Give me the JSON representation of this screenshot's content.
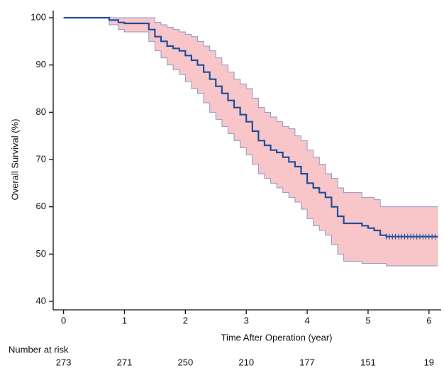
{
  "chart_data": {
    "type": "step",
    "y_label": "Overall Survival (%)",
    "x_label": "Time After Operation (year)",
    "xlim": [
      -0.17,
      6.2
    ],
    "ylim": [
      38.2,
      101.5
    ],
    "xticks": [
      0,
      1,
      2,
      3,
      4,
      5,
      6
    ],
    "yticks": [
      40,
      50,
      60,
      70,
      80,
      90,
      100
    ],
    "x": [
      0,
      0.75,
      0.9,
      1.0,
      1.4,
      1.5,
      1.6,
      1.7,
      1.8,
      1.9,
      2.0,
      2.1,
      2.2,
      2.3,
      2.4,
      2.5,
      2.6,
      2.7,
      2.8,
      2.9,
      3.0,
      3.1,
      3.2,
      3.3,
      3.4,
      3.5,
      3.6,
      3.7,
      3.8,
      3.9,
      4.0,
      4.1,
      4.2,
      4.3,
      4.4,
      4.5,
      4.6,
      4.9,
      5.0,
      5.1,
      5.2,
      5.3,
      6.15
    ],
    "values": [
      100,
      99.5,
      99,
      98.8,
      97.5,
      96,
      95,
      94,
      93.5,
      93,
      92,
      91,
      90,
      88.5,
      87,
      85.5,
      84,
      82.5,
      81,
      79.5,
      78,
      76,
      74,
      73,
      72,
      71.5,
      70.5,
      69.5,
      68.5,
      67,
      65,
      64,
      63,
      62,
      60,
      58,
      56.5,
      56,
      55.5,
      55,
      54,
      53.7,
      53.7
    ],
    "lower": [
      100,
      98.5,
      97.5,
      97,
      95,
      93,
      91.5,
      90,
      89,
      88,
      86.5,
      85,
      84,
      82,
      80,
      78.5,
      77,
      75.5,
      74,
      72.5,
      71,
      69,
      67,
      66,
      65,
      64,
      63,
      62,
      61,
      59.5,
      57.5,
      56,
      55,
      54,
      52,
      50,
      48.5,
      48,
      48,
      48,
      48,
      47.5,
      47.5
    ],
    "upper": [
      100,
      100,
      100,
      100,
      100,
      99,
      98.5,
      98,
      97.5,
      97,
      96.5,
      96,
      95,
      94,
      93,
      91.5,
      90,
      88.5,
      87,
      86,
      85,
      83,
      81,
      80,
      79,
      78,
      77,
      76.5,
      75,
      74,
      72,
      70.5,
      69,
      67,
      66,
      64,
      63,
      62,
      62,
      61.5,
      60,
      60,
      60
    ],
    "censored_x": [
      5.3,
      5.35,
      5.4,
      5.45,
      5.5,
      5.55,
      5.6,
      5.65,
      5.7,
      5.75,
      5.8,
      5.85,
      5.9,
      5.95,
      6.0,
      6.05,
      6.1
    ],
    "censored_values": [
      53.7,
      53.7,
      53.7,
      53.7,
      53.7,
      53.7,
      53.7,
      53.7,
      53.7,
      53.7,
      53.7,
      53.7,
      53.7,
      53.7,
      53.7,
      53.7,
      53.7
    ],
    "line_color": "#1f4e9a",
    "band_color": "#f8c6c8",
    "band_edge_color": "#8f96c8",
    "risk_title": "Number at risk",
    "risk_color": "#1e1e9c",
    "risk_counts": [
      273,
      271,
      250,
      210,
      177,
      151,
      19
    ]
  }
}
